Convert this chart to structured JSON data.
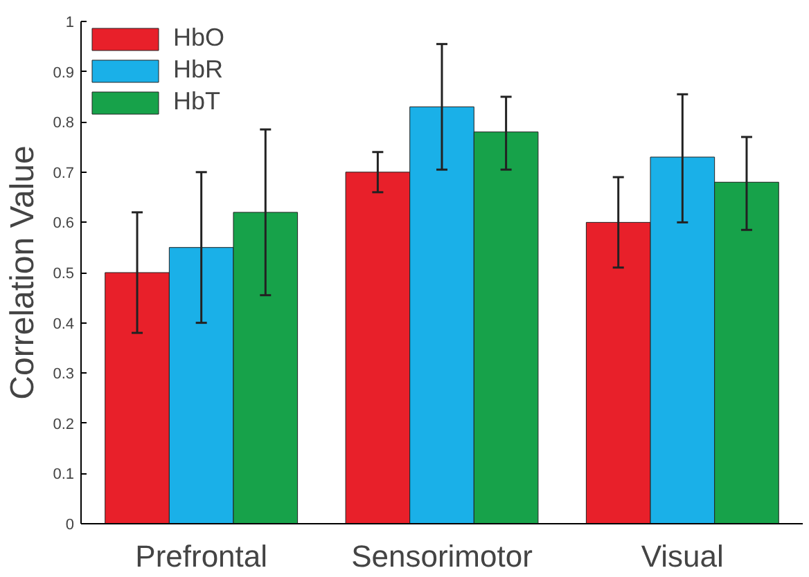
{
  "chart_data": {
    "type": "bar",
    "ylabel": "Correlation Value",
    "categories": [
      "Prefrontal",
      "Sensorimotor",
      "Visual"
    ],
    "series": [
      {
        "name": "HbO",
        "color": "#e8202a",
        "values": [
          0.5,
          0.7,
          0.6
        ],
        "errors": [
          [
            0.38,
            0.62
          ],
          [
            0.66,
            0.74
          ],
          [
            0.51,
            0.69
          ]
        ]
      },
      {
        "name": "HbR",
        "color": "#1ab0e8",
        "values": [
          0.55,
          0.83,
          0.73
        ],
        "errors": [
          [
            0.4,
            0.7
          ],
          [
            0.705,
            0.955
          ],
          [
            0.6,
            0.855
          ]
        ]
      },
      {
        "name": "HbT",
        "color": "#17a24a",
        "values": [
          0.62,
          0.78,
          0.68
        ],
        "errors": [
          [
            0.455,
            0.785
          ],
          [
            0.705,
            0.85
          ],
          [
            0.585,
            0.77
          ]
        ]
      }
    ],
    "ylim": [
      0,
      1
    ],
    "yticks": [
      0,
      0.1,
      0.2,
      0.3,
      0.4,
      0.5,
      0.6,
      0.7,
      0.8,
      0.9,
      1
    ],
    "grid": false,
    "legend": "top left"
  }
}
